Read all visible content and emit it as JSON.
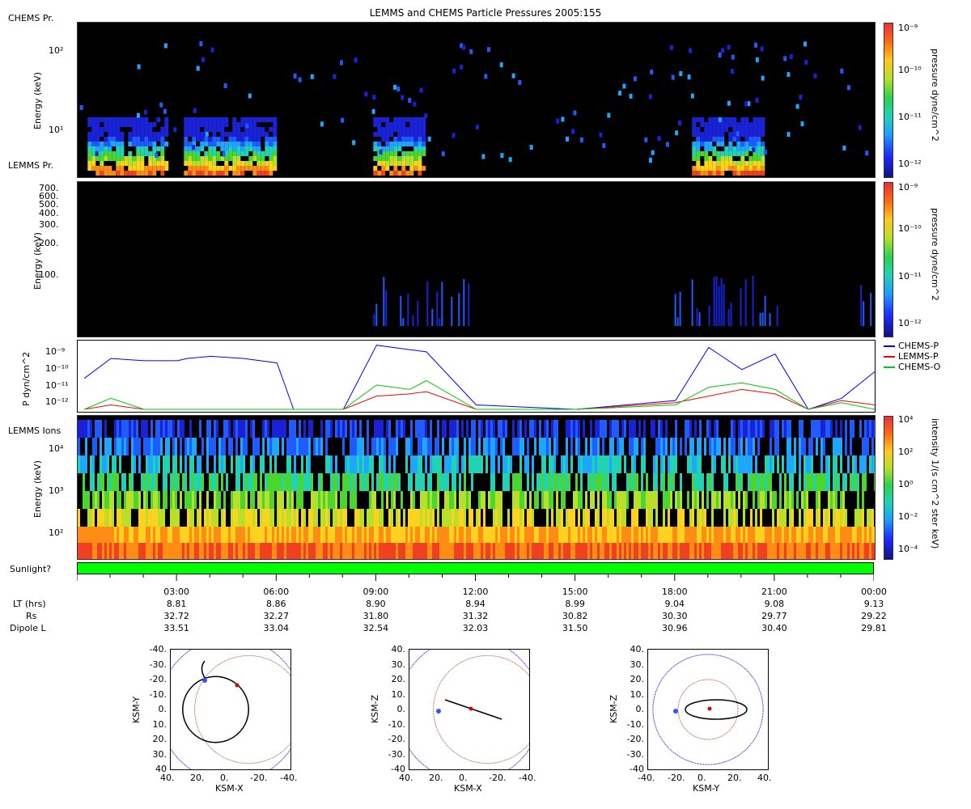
{
  "title": "LEMMS and CHEMS Particle Pressures  2005:155",
  "colors": {
    "chems_p": "#0000ff",
    "lemms_p": "#ff0000",
    "chems_o": "#00cc00",
    "sunlight": "#00ff00",
    "outer_circle": "#0000cc",
    "inner_circle": "#a0522d",
    "marker": "#dd0000"
  },
  "panel1": {
    "label": "CHEMS Pr.",
    "ylabel": "Energy (keV)",
    "yticks": [
      "10²",
      "10¹"
    ],
    "cbar_label": "pressure dyne/cm^2",
    "cbar_ticks": [
      "10⁻⁹",
      "10⁻¹⁰",
      "10⁻¹¹",
      "10⁻¹²"
    ]
  },
  "panel2": {
    "label": "LEMMS Pr.",
    "ylabel": "Energy (keV)",
    "yticks": [
      "700.",
      "600.",
      "500.",
      "400.",
      "300.",
      "200.",
      "100."
    ],
    "cbar_label": "pressure dyne/cm^2",
    "cbar_ticks": [
      "10⁻⁹",
      "10⁻¹⁰",
      "10⁻¹¹",
      "10⁻¹²"
    ]
  },
  "panel3": {
    "ylabel": "P dyn/cm^2",
    "yticks": [
      "10⁻⁹",
      "10⁻¹⁰",
      "10⁻¹¹",
      "10⁻¹²"
    ],
    "legend": [
      "CHEMS-P",
      "LEMMS-P",
      "CHEMS-O"
    ]
  },
  "panel4": {
    "label": "LEMMS Ions",
    "ylabel": "Energy (keV)",
    "yticks": [
      "10⁴",
      "10³",
      "10²"
    ],
    "cbar_label": "intensity 1/(s cm^2 ster keV)",
    "cbar_ticks": [
      "10⁴",
      "10²",
      "10⁰",
      "10⁻²",
      "10⁻⁴"
    ]
  },
  "sunlight_label": "Sunlight?",
  "time_axis": {
    "row_labels": [
      "LT (hrs)",
      "Rs",
      "Dipole L"
    ],
    "ticks": [
      {
        "time": "03:00",
        "lt": "8.81",
        "rs": "32.72",
        "l": "33.51"
      },
      {
        "time": "06:00",
        "lt": "8.86",
        "rs": "32.27",
        "l": "33.04"
      },
      {
        "time": "09:00",
        "lt": "8.90",
        "rs": "31.80",
        "l": "32.54"
      },
      {
        "time": "12:00",
        "lt": "8.94",
        "rs": "31.32",
        "l": "32.03"
      },
      {
        "time": "15:00",
        "lt": "8.99",
        "rs": "30.82",
        "l": "31.50"
      },
      {
        "time": "18:00",
        "lt": "9.04",
        "rs": "30.30",
        "l": "30.96"
      },
      {
        "time": "21:00",
        "lt": "9.08",
        "rs": "29.77",
        "l": "30.40"
      },
      {
        "time": "00:00",
        "lt": "9.13",
        "rs": "29.22",
        "l": "29.81"
      }
    ]
  },
  "orbits": [
    {
      "xlabel": "KSM-X",
      "ylabel": "KSM-Y",
      "yticks": [
        "-40.",
        "-30.",
        "-20.",
        "-10.",
        "0.",
        "10.",
        "20.",
        "30.",
        "40"
      ],
      "xticks": [
        "40.",
        "20.",
        "0.",
        "-20.",
        "-40."
      ]
    },
    {
      "xlabel": "KSM-X",
      "ylabel": "KSM-Z",
      "yticks": [
        "40.",
        "30.",
        "20.",
        "10.",
        "0.",
        "-10.",
        "-20.",
        "-30.",
        "-40"
      ],
      "xticks": [
        "40.",
        "20.",
        "0.",
        "-20.",
        "-40."
      ]
    },
    {
      "xlabel": "KSM-Y",
      "ylabel": "KSM-Z",
      "yticks": [
        "40.",
        "30.",
        "20.",
        "10.",
        "0.",
        "-10.",
        "-20.",
        "-30.",
        "-40"
      ],
      "xticks": [
        "-40.",
        "-20.",
        "0.",
        "20.",
        "40."
      ]
    }
  ],
  "chart_data": [
    {
      "type": "heatmap",
      "title": "LEMMS and CHEMS Particle Pressures  2005:155",
      "ylabel": "Energy (keV)",
      "colorbar": "pressure dyne/cm^2",
      "colorbar_range": [
        "1e-12",
        "1e-9"
      ],
      "yscale": "log",
      "x_range": [
        "00:00",
        "24:00"
      ],
      "active_intervals_hours": [
        [
          0.3,
          2.7
        ],
        [
          3.2,
          5.9
        ],
        [
          8.9,
          10.4
        ],
        [
          18.5,
          20.6
        ]
      ]
    },
    {
      "type": "heatmap",
      "ylabel": "Energy (keV)",
      "colorbar": "pressure dyne/cm^2",
      "ytick_values": [
        700,
        600,
        500,
        400,
        300,
        200,
        100
      ],
      "active_intervals_hours": [
        [
          8.9,
          11.8
        ],
        [
          17.9,
          21.2
        ],
        [
          23.2,
          24.0
        ]
      ]
    },
    {
      "type": "line",
      "ylabel": "P dyn/cm^2",
      "yscale": "log",
      "ylim": [
        "1e-12",
        "1e-9"
      ],
      "x_hours": [
        0.2,
        1,
        2,
        3,
        3.3,
        4,
        5,
        6,
        6.5,
        8,
        9,
        10,
        10.5,
        12,
        15,
        18,
        19,
        20,
        21,
        22,
        23,
        24
      ],
      "series": [
        {
          "name": "CHEMS-P",
          "values": [
            -10.6,
            -9.7,
            -9.8,
            -9.8,
            -9.7,
            -9.6,
            -9.7,
            -9.9,
            -12,
            -12,
            -9.1,
            -9.3,
            -9.4,
            -11.8,
            -12,
            -11.6,
            -9.2,
            -10.2,
            -9.5,
            -12,
            -11.5,
            -10.3
          ]
        },
        {
          "name": "LEMMS-P",
          "values": [
            -12,
            -11.8,
            -12,
            -12,
            -12,
            -12,
            -12,
            -12,
            -12,
            -12,
            -11.4,
            -11.3,
            -11.2,
            -12,
            -12,
            -11.7,
            -11.4,
            -11.1,
            -11.3,
            -12,
            -11.6,
            -11.8
          ]
        },
        {
          "name": "CHEMS-O",
          "values": [
            -12,
            -11.5,
            -12,
            -12,
            -12,
            -12,
            -12,
            -12,
            -12,
            -12,
            -10.9,
            -11.1,
            -10.7,
            -12,
            -12,
            -11.8,
            -11.0,
            -10.8,
            -11.1,
            -12,
            -11.7,
            -12
          ]
        }
      ]
    },
    {
      "type": "heatmap",
      "ylabel": "Energy (keV)",
      "colorbar": "intensity 1/(s cm^2 ster keV)",
      "colorbar_range": [
        "1e-4",
        "1e4"
      ],
      "yscale": "log"
    },
    {
      "type": "scatter",
      "name": "orbit",
      "views": [
        "KSM-X vs KSM-Y",
        "KSM-X vs KSM-Z",
        "KSM-Y vs KSM-Z"
      ],
      "range": [
        -40,
        40
      ]
    }
  ]
}
